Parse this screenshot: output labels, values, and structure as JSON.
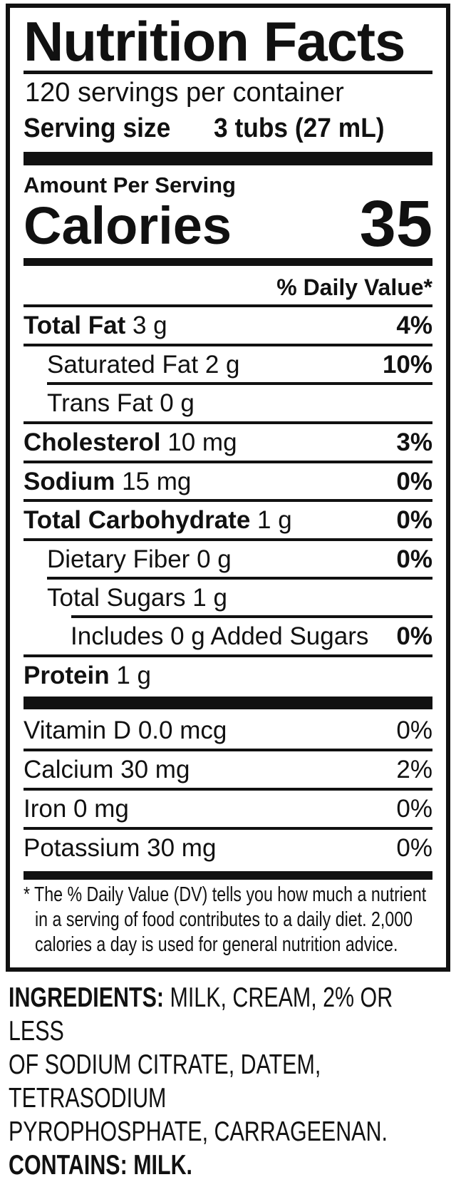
{
  "title": "Nutrition Facts",
  "servings_per_container": "120 servings per container",
  "serving_size_label": "Serving size",
  "serving_size_value": "3 tubs (27 mL)",
  "amount_per_serving": "Amount Per Serving",
  "calories_label": "Calories",
  "calories_value": "35",
  "daily_value_header": "% Daily Value*",
  "nutrients": [
    {
      "name": "Total Fat",
      "amount": "3 g",
      "dv": "4%"
    },
    {
      "name": "Saturated Fat",
      "amount": "2 g",
      "dv": "10%"
    },
    {
      "name": "Trans Fat",
      "amount": "0 g",
      "dv": ""
    },
    {
      "name": "Cholesterol",
      "amount": "10 mg",
      "dv": "3%"
    },
    {
      "name": "Sodium",
      "amount": "15 mg",
      "dv": "0%"
    },
    {
      "name": "Total Carbohydrate",
      "amount": "1 g",
      "dv": "0%"
    },
    {
      "name": "Dietary Fiber",
      "amount": "0 g",
      "dv": "0%"
    },
    {
      "name": "Total Sugars",
      "amount": "1 g",
      "dv": ""
    },
    {
      "name": "Includes 0 g Added Sugars",
      "amount": "",
      "dv": "0%"
    },
    {
      "name": "Protein",
      "amount": "1 g",
      "dv": ""
    }
  ],
  "vitamins": [
    {
      "name": "Vitamin D",
      "amount": "0.0 mcg",
      "dv": "0%"
    },
    {
      "name": "Calcium",
      "amount": "30 mg",
      "dv": "2%"
    },
    {
      "name": "Iron",
      "amount": "0 mg",
      "dv": "0%"
    },
    {
      "name": "Potassium",
      "amount": "30 mg",
      "dv": "0%"
    }
  ],
  "footnote": [
    "* The % Daily Value (DV) tells you how much a nutrient",
    "in a serving of food contributes to a daily diet. 2,000",
    "calories a day is used for general nutrition advice."
  ],
  "ingredients_label": "INGREDIENTS:",
  "ingredients_lines": [
    "MILK, CREAM, 2% OR  LESS",
    "OF SODIUM CITRATE, DATEM, TETRASODIUM",
    "PYROPHOSPHATE, CARRAGEENAN."
  ],
  "contains_label": "CONTAINS:",
  "contains_value": "MILK."
}
